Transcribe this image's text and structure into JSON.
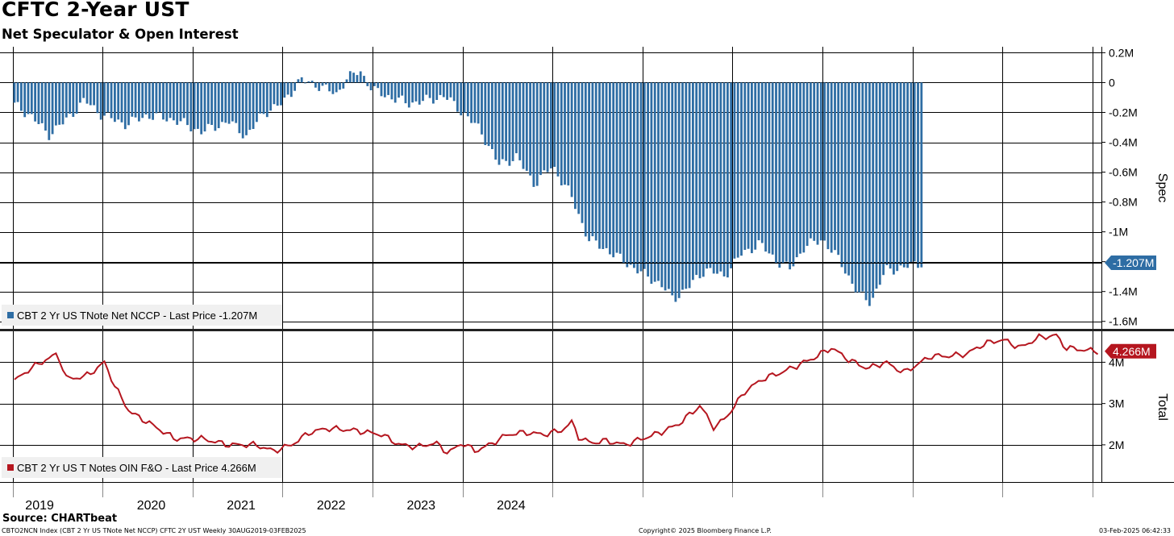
{
  "header": {
    "title": "CFTC 2-Year UST",
    "subtitle": "Net Speculator & Open Interest"
  },
  "footer": {
    "source": "Source: CHARTbeat",
    "ticker_info": "CBTO2NCN Index (CBT 2 Yr US TNote Net NCCP) CFTC 2Y UST  Weekly 30AUG2019-03FEB2025",
    "copyright": "Copyright© 2025 Bloomberg Finance L.P.",
    "timestamp": "03-Feb-2025 06:42:33"
  },
  "colors": {
    "spec_bar": "#2e6da4",
    "total_line": "#b5161f",
    "grid": "#000000"
  },
  "chart_data": [
    {
      "type": "bar",
      "panel": "top",
      "ylabel": "Spec",
      "ylim": [
        -1.65,
        0.24
      ],
      "ytick_values": [
        0.2,
        0,
        -0.2,
        -0.4,
        -0.6,
        -0.8,
        -1.0,
        -1.2,
        -1.4,
        -1.6
      ],
      "ytick_labels": [
        "0.2M",
        "0",
        "-0.2M",
        "-0.4M",
        "-0.6M",
        "-0.8M",
        "-1M",
        "",
        "-1.4M",
        "-1.6M"
      ],
      "legend": "CBT 2 Yr US TNote Net NCCP - Last Price -1.207M",
      "last_value": -1.207,
      "last_label": "-1.207M",
      "series": [
        {
          "year": 2019.66,
          "value": -0.15
        },
        {
          "year": 2019.75,
          "value": -0.22
        },
        {
          "year": 2019.85,
          "value": -0.35
        },
        {
          "year": 2019.95,
          "value": -0.25
        },
        {
          "year": 2020.05,
          "value": -0.12
        },
        {
          "year": 2020.15,
          "value": -0.22
        },
        {
          "year": 2020.28,
          "value": -0.28
        },
        {
          "year": 2020.4,
          "value": -0.22
        },
        {
          "year": 2020.55,
          "value": -0.25
        },
        {
          "year": 2020.7,
          "value": -0.33
        },
        {
          "year": 2020.85,
          "value": -0.26
        },
        {
          "year": 2020.95,
          "value": -0.36
        },
        {
          "year": 2021.05,
          "value": -0.2
        },
        {
          "year": 2021.15,
          "value": -0.14
        },
        {
          "year": 2021.25,
          "value": 0.02
        },
        {
          "year": 2021.35,
          "value": -0.02
        },
        {
          "year": 2021.45,
          "value": -0.08
        },
        {
          "year": 2021.5,
          "value": 0.02
        },
        {
          "year": 2021.58,
          "value": 0.08
        },
        {
          "year": 2021.65,
          "value": -0.05
        },
        {
          "year": 2021.75,
          "value": -0.1
        },
        {
          "year": 2021.85,
          "value": -0.14
        },
        {
          "year": 2021.95,
          "value": -0.12
        },
        {
          "year": 2022.05,
          "value": -0.09
        },
        {
          "year": 2022.15,
          "value": -0.2
        },
        {
          "year": 2022.25,
          "value": -0.32
        },
        {
          "year": 2022.35,
          "value": -0.55
        },
        {
          "year": 2022.45,
          "value": -0.5
        },
        {
          "year": 2022.55,
          "value": -0.68
        },
        {
          "year": 2022.65,
          "value": -0.56
        },
        {
          "year": 2022.75,
          "value": -0.75
        },
        {
          "year": 2022.85,
          "value": -1.05
        },
        {
          "year": 2022.95,
          "value": -1.12
        },
        {
          "year": 2023.05,
          "value": -1.2
        },
        {
          "year": 2023.15,
          "value": -1.28
        },
        {
          "year": 2023.25,
          "value": -1.35
        },
        {
          "year": 2023.32,
          "value": -1.45
        },
        {
          "year": 2023.4,
          "value": -1.38
        },
        {
          "year": 2023.5,
          "value": -1.25
        },
        {
          "year": 2023.6,
          "value": -1.3
        },
        {
          "year": 2023.7,
          "value": -1.15
        },
        {
          "year": 2023.8,
          "value": -1.08
        },
        {
          "year": 2023.9,
          "value": -1.2
        },
        {
          "year": 2023.97,
          "value": -1.25
        },
        {
          "year": 2024.05,
          "value": -1.1
        },
        {
          "year": 2024.15,
          "value": -1.05
        },
        {
          "year": 2024.25,
          "value": -1.2
        },
        {
          "year": 2024.35,
          "value": -1.42
        },
        {
          "year": 2024.42,
          "value": -1.47
        },
        {
          "year": 2024.5,
          "value": -1.26
        },
        {
          "year": 2024.6,
          "value": -1.24
        },
        {
          "year": 2024.7,
          "value": -1.207
        }
      ]
    },
    {
      "type": "line",
      "panel": "bottom",
      "ylabel": "Total",
      "ylim": [
        1.1,
        4.75
      ],
      "ytick_values": [
        4,
        3,
        2
      ],
      "ytick_labels": [
        "4M",
        "3M",
        "2M"
      ],
      "legend": "CBT 2 Yr US T Notes OIN F&O - Last Price 4.266M",
      "last_value": 4.266,
      "last_label": "4.266M",
      "series": [
        {
          "year": 2019.66,
          "value": 3.55
        },
        {
          "year": 2019.75,
          "value": 3.85
        },
        {
          "year": 2019.83,
          "value": 4.05
        },
        {
          "year": 2019.9,
          "value": 4.2
        },
        {
          "year": 2019.95,
          "value": 3.6
        },
        {
          "year": 2020.05,
          "value": 3.65
        },
        {
          "year": 2020.12,
          "value": 3.85
        },
        {
          "year": 2020.16,
          "value": 4.0
        },
        {
          "year": 2020.22,
          "value": 3.4
        },
        {
          "year": 2020.3,
          "value": 2.8
        },
        {
          "year": 2020.4,
          "value": 2.55
        },
        {
          "year": 2020.55,
          "value": 2.15
        },
        {
          "year": 2020.7,
          "value": 2.15
        },
        {
          "year": 2020.85,
          "value": 2.0
        },
        {
          "year": 2021.0,
          "value": 2.0
        },
        {
          "year": 2021.1,
          "value": 1.85
        },
        {
          "year": 2021.2,
          "value": 2.0
        },
        {
          "year": 2021.3,
          "value": 2.3
        },
        {
          "year": 2021.4,
          "value": 2.4
        },
        {
          "year": 2021.55,
          "value": 2.35
        },
        {
          "year": 2021.7,
          "value": 2.25
        },
        {
          "year": 2021.8,
          "value": 2.0
        },
        {
          "year": 2021.9,
          "value": 1.95
        },
        {
          "year": 2022.0,
          "value": 2.05
        },
        {
          "year": 2022.07,
          "value": 1.8
        },
        {
          "year": 2022.15,
          "value": 2.05
        },
        {
          "year": 2022.22,
          "value": 1.85
        },
        {
          "year": 2022.3,
          "value": 2.0
        },
        {
          "year": 2022.4,
          "value": 2.25
        },
        {
          "year": 2022.5,
          "value": 2.3
        },
        {
          "year": 2022.6,
          "value": 2.25
        },
        {
          "year": 2022.7,
          "value": 2.35
        },
        {
          "year": 2022.76,
          "value": 2.55
        },
        {
          "year": 2022.8,
          "value": 2.15
        },
        {
          "year": 2022.87,
          "value": 2.05
        },
        {
          "year": 2022.95,
          "value": 2.1
        },
        {
          "year": 2023.05,
          "value": 2.0
        },
        {
          "year": 2023.15,
          "value": 2.15
        },
        {
          "year": 2023.25,
          "value": 2.3
        },
        {
          "year": 2023.35,
          "value": 2.5
        },
        {
          "year": 2023.47,
          "value": 2.95
        },
        {
          "year": 2023.55,
          "value": 2.4
        },
        {
          "year": 2023.63,
          "value": 2.75
        },
        {
          "year": 2023.72,
          "value": 3.3
        },
        {
          "year": 2023.82,
          "value": 3.6
        },
        {
          "year": 2023.92,
          "value": 3.75
        },
        {
          "year": 2024.0,
          "value": 3.9
        },
        {
          "year": 2024.1,
          "value": 4.1
        },
        {
          "year": 2024.2,
          "value": 4.35
        },
        {
          "year": 2024.3,
          "value": 4.05
        },
        {
          "year": 2024.4,
          "value": 3.85
        },
        {
          "year": 2024.5,
          "value": 4.0
        },
        {
          "year": 2024.6,
          "value": 3.75
        },
        {
          "year": 2024.68,
          "value": 3.95
        },
        {
          "year": 2024.75,
          "value": 4.15
        },
        {
          "year": 2024.85,
          "value": 4.15
        },
        {
          "year": 2024.95,
          "value": 4.2
        },
        {
          "year": 2025.05,
          "value": 4.45
        },
        {
          "year": 2025.15,
          "value": 4.55
        },
        {
          "year": 2025.25,
          "value": 4.35
        },
        {
          "year": 2025.35,
          "value": 4.6
        },
        {
          "year": 2025.45,
          "value": 4.65
        },
        {
          "year": 2025.5,
          "value": 4.35
        },
        {
          "year": 2025.6,
          "value": 4.3
        },
        {
          "year": 2025.68,
          "value": 4.266
        }
      ]
    }
  ],
  "x_axis": {
    "year_labels": [
      "2019",
      "2020",
      "2021",
      "2022",
      "2023",
      "2024"
    ]
  }
}
